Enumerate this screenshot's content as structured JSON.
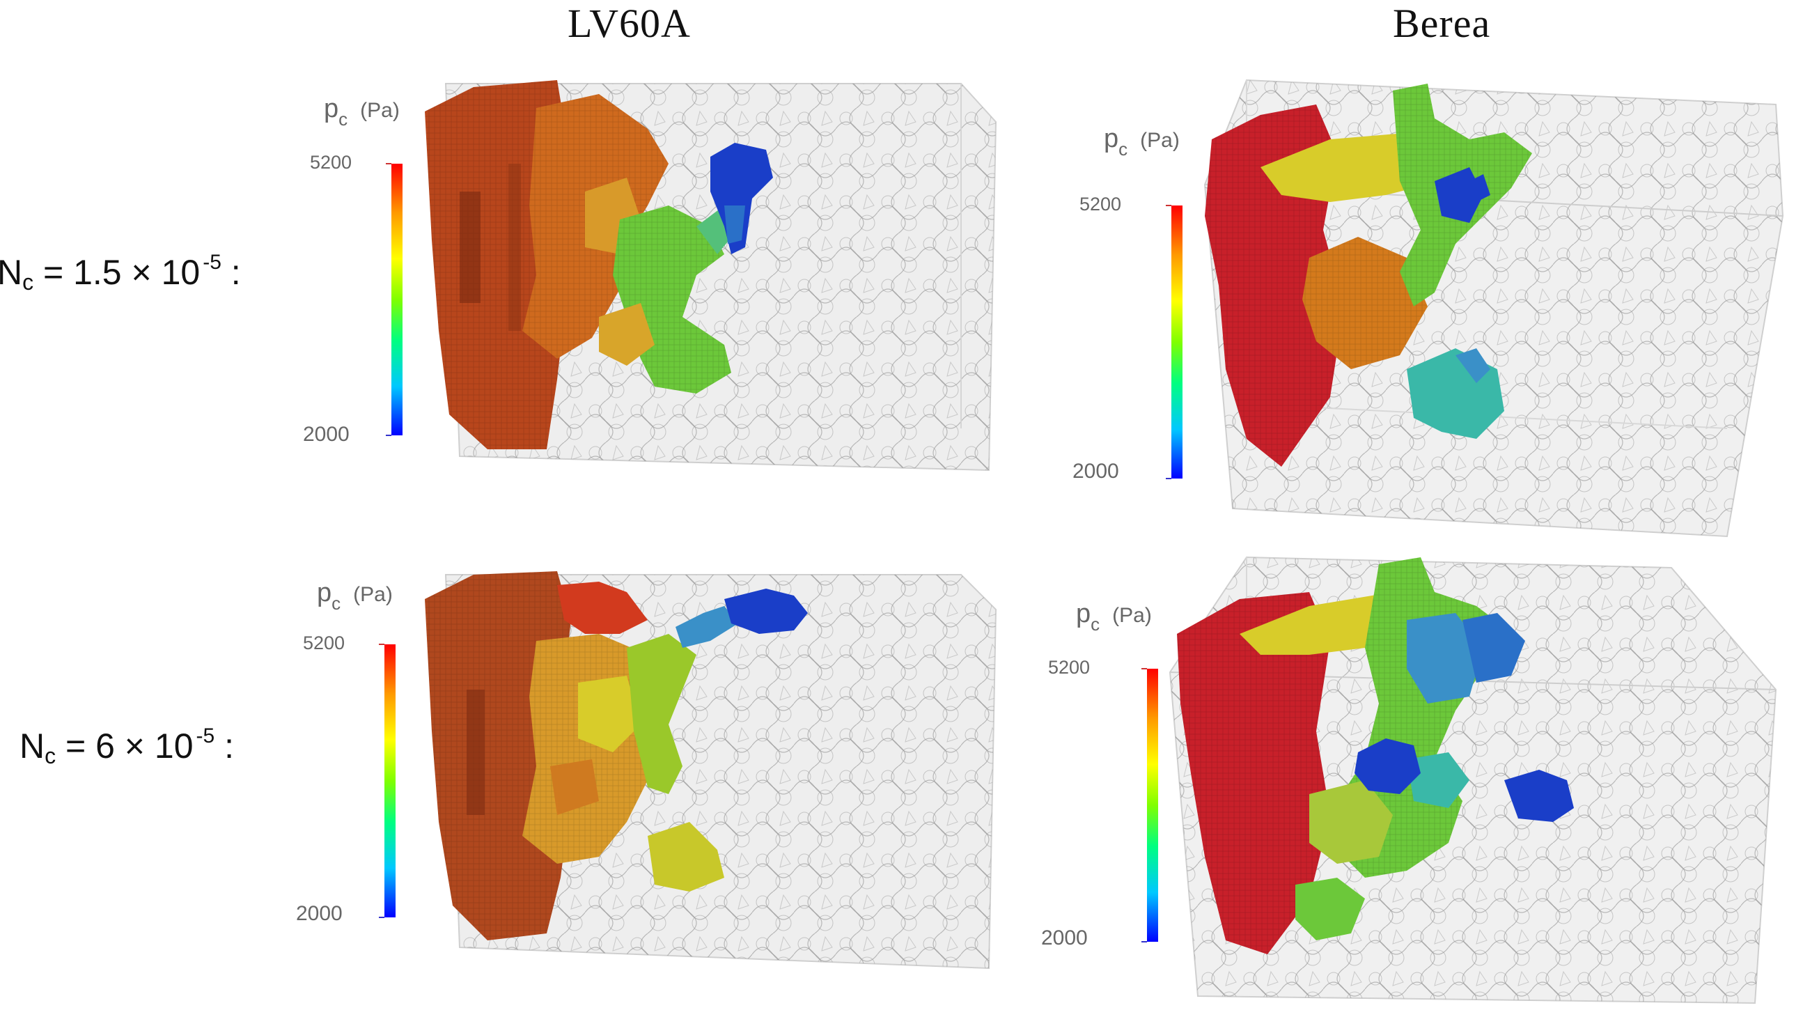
{
  "columns": {
    "left_title": "LV60A",
    "right_title": "Berea"
  },
  "rows": [
    {
      "label_main": "N",
      "label_sub": "c",
      "label_mid": " = 1.5 × 10",
      "label_exp": "-5",
      "label_end": " :"
    },
    {
      "label_main": "N",
      "label_sub": "c",
      "label_mid": " = 6 × 10",
      "label_exp": "-5",
      "label_end": " :"
    }
  ],
  "colorbar": {
    "symbol": "p",
    "symbol_sub": "c",
    "unit": "(Pa)",
    "max_label": "5200",
    "min_label": "2000",
    "colors": [
      "#0000ff",
      "#00c8ff",
      "#00ff80",
      "#80ff00",
      "#ffff00",
      "#ff9900",
      "#ff0000"
    ]
  },
  "colors": {
    "red": "#c8202a",
    "dark_orange": "#b8461c",
    "orange": "#d47a1c",
    "yellow": "#d8cc2a",
    "green": "#6cc83a",
    "teal": "#3ab8a8",
    "blue": "#1a3ec8",
    "gray_mesh": "#9a9a9a"
  }
}
